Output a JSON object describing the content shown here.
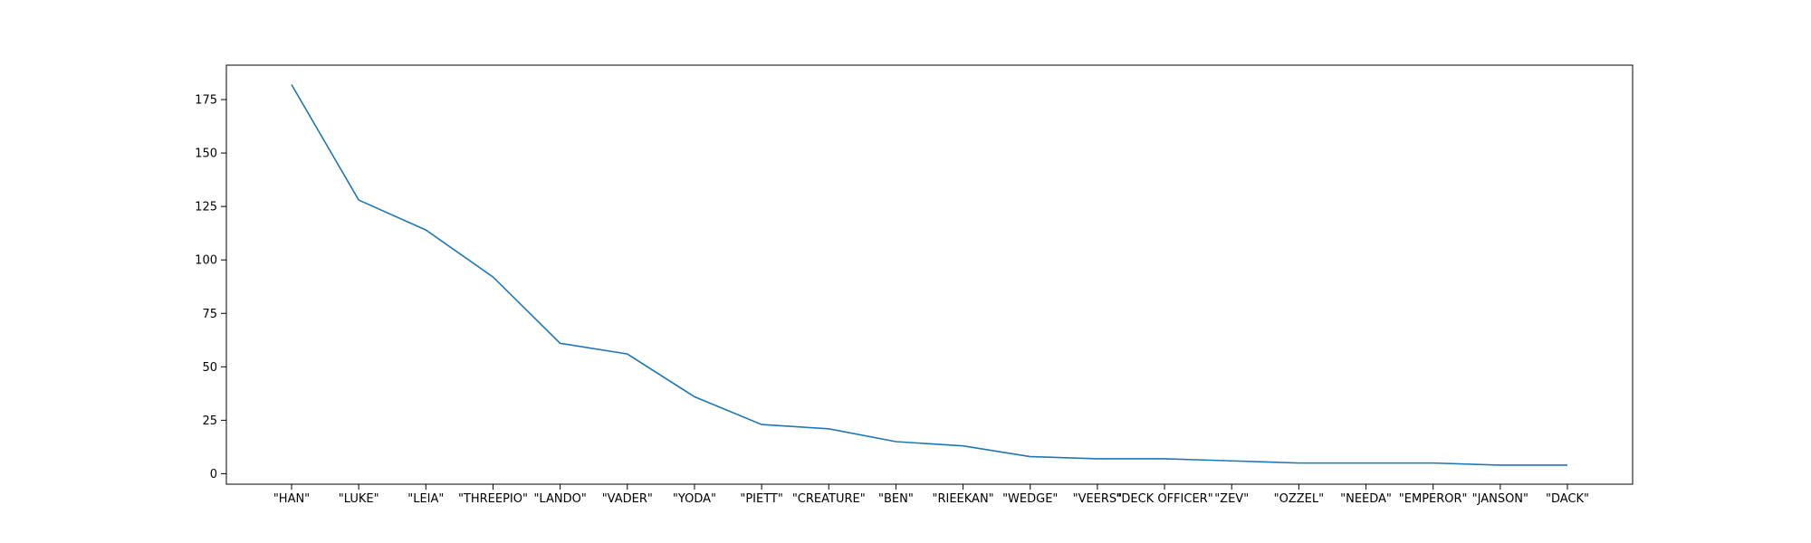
{
  "chart_data": {
    "type": "line",
    "title": "",
    "xlabel": "",
    "ylabel": "",
    "categories": [
      "\"HAN\"",
      "\"LUKE\"",
      "\"LEIA\"",
      "\"THREEPIO\"",
      "\"LANDO\"",
      "\"VADER\"",
      "\"YODA\"",
      "\"PIETT\"",
      "\"CREATURE\"",
      "\"BEN\"",
      "\"RIEEKAN\"",
      "\"WEDGE\"",
      "\"VEERS\"",
      "\"DECK OFFICER\"",
      "\"ZEV\"",
      "\"OZZEL\"",
      "\"NEEDA\"",
      "\"EMPEROR\"",
      "\"JANSON\"",
      "\"DACK\""
    ],
    "series": [
      {
        "values": [
          182,
          128,
          114,
          92,
          61,
          56,
          36,
          23,
          21,
          15,
          13,
          8,
          7,
          7,
          6,
          5,
          5,
          5,
          4,
          4
        ],
        "color": "#1f77b4"
      }
    ],
    "yticks": [
      0,
      25,
      50,
      75,
      100,
      125,
      150,
      175
    ],
    "ylim": [
      -4.9,
      191.1
    ],
    "grid": false,
    "legend": false
  }
}
